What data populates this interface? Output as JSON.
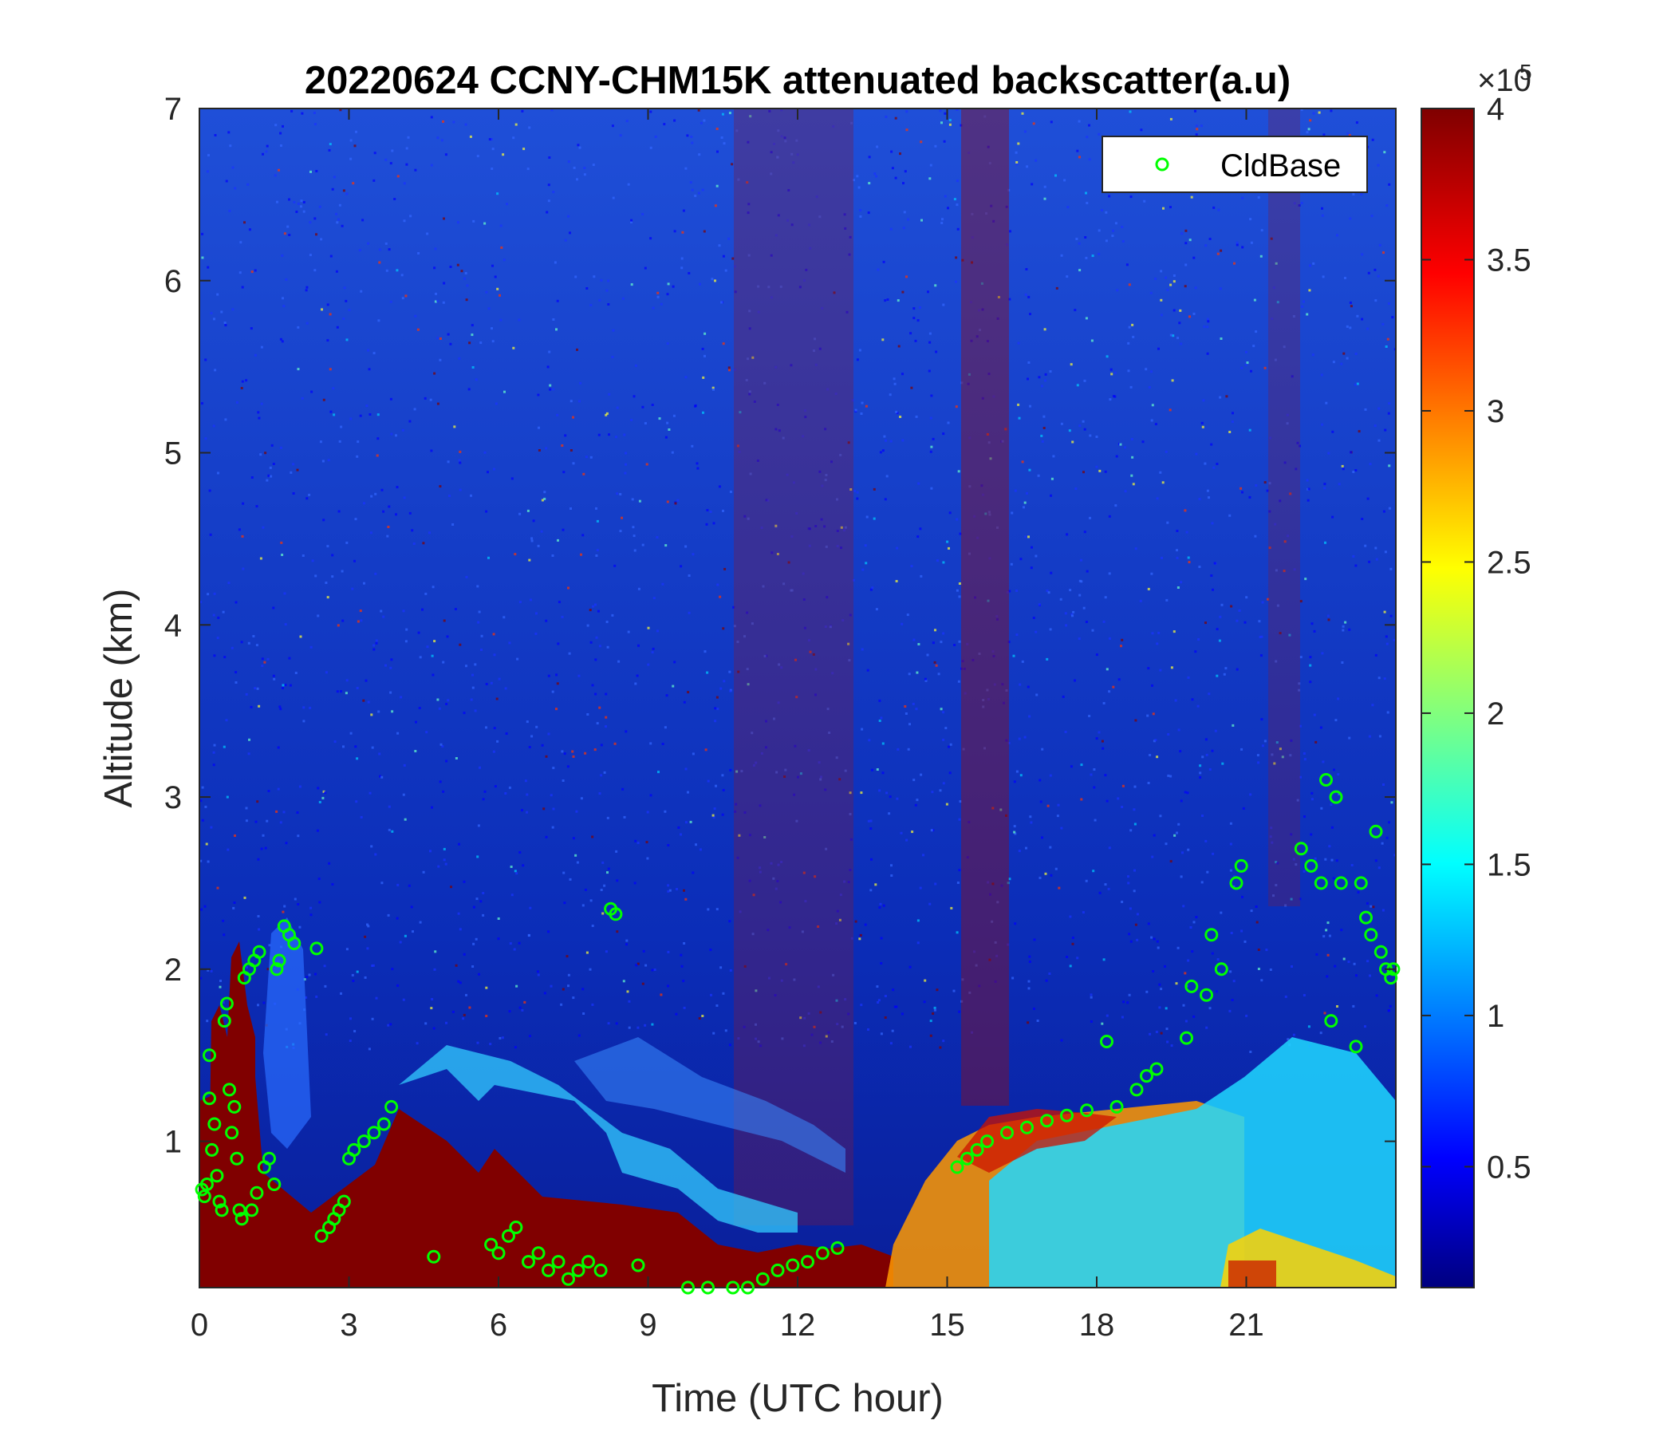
{
  "chart_data": {
    "type": "heatmap",
    "title": "20220624 CCNY-CHM15K attenuated backscatter(a.u)",
    "xlabel": "Time (UTC hour)",
    "ylabel": "Altitude (km)",
    "xlim": [
      0,
      24
    ],
    "ylim": [
      0.15,
      7
    ],
    "x_ticks": [
      0,
      3,
      6,
      9,
      12,
      15,
      18,
      21
    ],
    "x_tick_labels": [
      "0",
      "3",
      "6",
      "9",
      "12",
      "15",
      "18",
      "21"
    ],
    "y_ticks": [
      1,
      2,
      3,
      4,
      5,
      6,
      7
    ],
    "y_tick_labels": [
      "1",
      "2",
      "3",
      "4",
      "5",
      "6",
      "7"
    ],
    "colormap": "jet",
    "colorbar": {
      "range": [
        0.1,
        4
      ],
      "ticks": [
        0.5,
        1,
        1.5,
        2,
        2.5,
        3,
        3.5,
        4
      ],
      "tick_labels": [
        "0.5",
        "1",
        "1.5",
        "2",
        "2.5",
        "3",
        "3.5",
        "4"
      ],
      "multiplier": "×10",
      "exponent": "5"
    },
    "legend": {
      "position": "top-right",
      "entries": [
        {
          "name": "CldBase",
          "marker": "circle",
          "color": "#00ff00"
        }
      ]
    },
    "grid": false,
    "series": [
      {
        "name": "CldBase",
        "marker": "circle",
        "color": "#00ff00",
        "points": [
          [
            0.05,
            0.72
          ],
          [
            0.1,
            0.68
          ],
          [
            0.15,
            0.75
          ],
          [
            0.2,
            1.25
          ],
          [
            0.2,
            1.5
          ],
          [
            0.25,
            0.95
          ],
          [
            0.3,
            1.1
          ],
          [
            0.35,
            0.8
          ],
          [
            0.4,
            0.65
          ],
          [
            0.45,
            0.6
          ],
          [
            0.5,
            1.7
          ],
          [
            0.55,
            1.8
          ],
          [
            0.6,
            1.3
          ],
          [
            0.65,
            1.05
          ],
          [
            0.7,
            1.2
          ],
          [
            0.75,
            0.9
          ],
          [
            0.8,
            0.6
          ],
          [
            0.85,
            0.55
          ],
          [
            0.9,
            1.95
          ],
          [
            1.0,
            2.0
          ],
          [
            1.05,
            0.6
          ],
          [
            1.1,
            2.05
          ],
          [
            1.15,
            0.7
          ],
          [
            1.2,
            2.1
          ],
          [
            1.3,
            0.85
          ],
          [
            1.4,
            0.9
          ],
          [
            1.5,
            0.75
          ],
          [
            1.55,
            2.0
          ],
          [
            1.6,
            2.05
          ],
          [
            1.7,
            2.25
          ],
          [
            1.8,
            2.2
          ],
          [
            1.9,
            2.15
          ],
          [
            2.35,
            2.12
          ],
          [
            2.45,
            0.45
          ],
          [
            2.6,
            0.5
          ],
          [
            2.7,
            0.55
          ],
          [
            2.8,
            0.6
          ],
          [
            2.9,
            0.65
          ],
          [
            3.0,
            0.9
          ],
          [
            3.1,
            0.95
          ],
          [
            3.3,
            1.0
          ],
          [
            3.5,
            1.05
          ],
          [
            3.7,
            1.1
          ],
          [
            3.85,
            1.2
          ],
          [
            4.7,
            0.33
          ],
          [
            5.85,
            0.4
          ],
          [
            6.0,
            0.35
          ],
          [
            6.2,
            0.45
          ],
          [
            6.35,
            0.5
          ],
          [
            6.6,
            0.3
          ],
          [
            6.8,
            0.35
          ],
          [
            7.0,
            0.25
          ],
          [
            7.2,
            0.3
          ],
          [
            7.4,
            0.2
          ],
          [
            7.6,
            0.25
          ],
          [
            7.8,
            0.3
          ],
          [
            8.05,
            0.25
          ],
          [
            8.25,
            2.35
          ],
          [
            8.35,
            2.32
          ],
          [
            8.8,
            0.28
          ],
          [
            9.8,
            0.15
          ],
          [
            10.2,
            0.15
          ],
          [
            10.7,
            0.15
          ],
          [
            11.0,
            0.15
          ],
          [
            11.3,
            0.2
          ],
          [
            11.6,
            0.25
          ],
          [
            11.9,
            0.28
          ],
          [
            12.2,
            0.3
          ],
          [
            12.5,
            0.35
          ],
          [
            12.8,
            0.38
          ],
          [
            15.2,
            0.85
          ],
          [
            15.4,
            0.9
          ],
          [
            15.6,
            0.95
          ],
          [
            15.8,
            1.0
          ],
          [
            16.2,
            1.05
          ],
          [
            16.6,
            1.08
          ],
          [
            17.0,
            1.12
          ],
          [
            17.4,
            1.15
          ],
          [
            17.8,
            1.18
          ],
          [
            18.2,
            1.58
          ],
          [
            18.4,
            1.2
          ],
          [
            18.8,
            1.3
          ],
          [
            19.0,
            1.38
          ],
          [
            19.2,
            1.42
          ],
          [
            19.8,
            1.6
          ],
          [
            19.9,
            1.9
          ],
          [
            20.2,
            1.85
          ],
          [
            20.3,
            2.2
          ],
          [
            20.5,
            2.0
          ],
          [
            20.8,
            2.5
          ],
          [
            20.9,
            2.6
          ],
          [
            22.1,
            2.7
          ],
          [
            22.3,
            2.6
          ],
          [
            22.5,
            2.5
          ],
          [
            22.6,
            3.1
          ],
          [
            22.8,
            3.0
          ],
          [
            22.7,
            1.7
          ],
          [
            22.9,
            2.5
          ],
          [
            23.2,
            1.55
          ],
          [
            23.3,
            2.5
          ],
          [
            23.4,
            2.3
          ],
          [
            23.5,
            2.2
          ],
          [
            23.6,
            2.8
          ],
          [
            23.7,
            2.1
          ],
          [
            23.8,
            2.0
          ],
          [
            23.9,
            1.95
          ],
          [
            23.95,
            2.0
          ]
        ]
      }
    ]
  }
}
